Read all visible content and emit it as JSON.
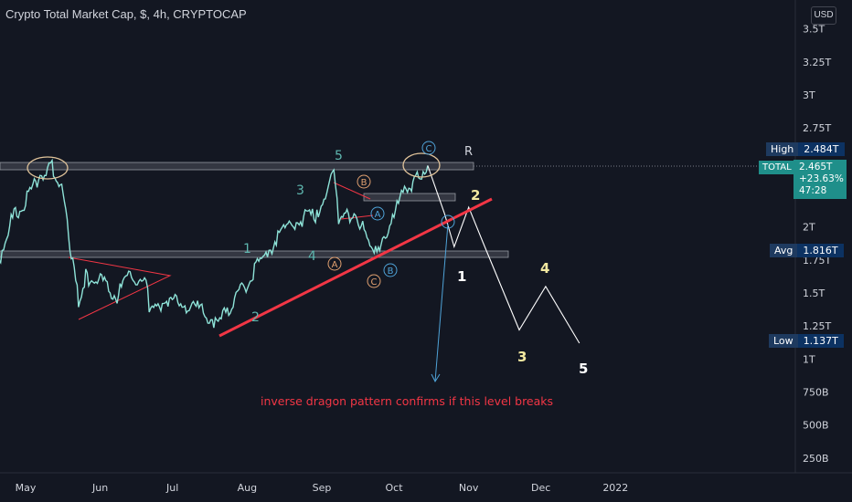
{
  "header": {
    "title": "Crypto Total Market Cap, $, 4h, CRYPTOCAP",
    "currency_badge": "USD"
  },
  "price_axis": {
    "ticks": [
      "3.5T",
      "3.25T",
      "3T",
      "2.75T",
      "2T",
      "1.75T",
      "1.5T",
      "1.25T",
      "1T",
      "750B",
      "500B",
      "250B"
    ]
  },
  "time_axis": {
    "ticks": [
      "May",
      "Jun",
      "Jul",
      "Aug",
      "Sep",
      "Oct",
      "Nov",
      "Dec",
      "2022"
    ]
  },
  "labels": {
    "high": {
      "key": "High",
      "value": "2.484T"
    },
    "avg": {
      "key": "Avg",
      "value": "1.816T"
    },
    "low": {
      "key": "Low",
      "value": "1.137T"
    },
    "current": {
      "symbol": "TOTAL",
      "price": "2.465T",
      "change": "+23.63%",
      "countdown": "47:28"
    }
  },
  "annotations": {
    "wave_teal": [
      "1",
      "2",
      "3",
      "4",
      "5"
    ],
    "wave_white": [
      "1",
      "2",
      "3",
      "4",
      "5"
    ],
    "abc_orange": [
      "B",
      "A",
      "C"
    ],
    "abc_teal": [
      "A",
      "B",
      "C"
    ],
    "r_label": "R",
    "note": "inverse dragon pattern confirms if this level breaks"
  },
  "colors": {
    "background": "#131722",
    "price_line": "#8ee3d8",
    "trendline": "#f23645",
    "projection": "#ffffff",
    "wave_yellow": "#f2e8a0",
    "label_bg": "#0c3262",
    "teal_tag": "#1f8f8a"
  },
  "chart_data": {
    "type": "line",
    "title": "Crypto Total Market Cap, $, 4h, CRYPTOCAP",
    "y_unit": "USD",
    "ylim": [
      0.2,
      3.6
    ],
    "series": [
      {
        "name": "TOTAL",
        "points": [
          [
            "2021-04-20",
            1.75
          ],
          [
            "2021-04-25",
            2.05
          ],
          [
            "2021-05-01",
            2.2
          ],
          [
            "2021-05-07",
            2.4
          ],
          [
            "2021-05-12",
            2.45
          ],
          [
            "2021-05-16",
            2.3
          ],
          [
            "2021-05-20",
            1.8
          ],
          [
            "2021-05-23",
            1.45
          ],
          [
            "2021-05-26",
            1.62
          ],
          [
            "2021-06-01",
            1.6
          ],
          [
            "2021-06-08",
            1.48
          ],
          [
            "2021-06-14",
            1.65
          ],
          [
            "2021-06-20",
            1.55
          ],
          [
            "2021-06-22",
            1.35
          ],
          [
            "2021-06-28",
            1.45
          ],
          [
            "2021-07-05",
            1.42
          ],
          [
            "2021-07-12",
            1.38
          ],
          [
            "2021-07-20",
            1.27
          ],
          [
            "2021-07-25",
            1.4
          ],
          [
            "2021-07-31",
            1.55
          ],
          [
            "2021-08-07",
            1.75
          ],
          [
            "2021-08-15",
            1.95
          ],
          [
            "2021-08-22",
            2.05
          ],
          [
            "2021-08-30",
            2.1
          ],
          [
            "2021-09-06",
            2.4
          ],
          [
            "2021-09-08",
            2.05
          ],
          [
            "2021-09-15",
            2.12
          ],
          [
            "2021-09-21",
            1.85
          ],
          [
            "2021-09-28",
            1.9
          ],
          [
            "2021-10-01",
            2.1
          ],
          [
            "2021-10-06",
            2.3
          ],
          [
            "2021-10-10",
            2.35
          ],
          [
            "2021-10-15",
            2.465
          ]
        ]
      },
      {
        "name": "projection",
        "points": [
          [
            "2021-10-22",
            2.1
          ],
          [
            "2021-10-26",
            1.85
          ],
          [
            "2021-11-01",
            2.15
          ],
          [
            "2021-11-07",
            1.88
          ],
          [
            "2021-11-22",
            1.22
          ],
          [
            "2021-12-03",
            1.55
          ],
          [
            "2021-12-17",
            1.12
          ]
        ]
      }
    ],
    "levels": {
      "high": 2.484,
      "avg": 1.816,
      "low": 1.137
    }
  }
}
